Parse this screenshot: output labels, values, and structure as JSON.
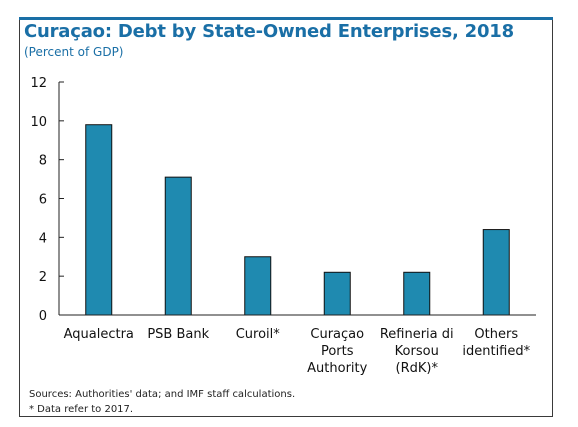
{
  "colors": {
    "accent": "#1a6fa6",
    "bar": "#1f8ab0",
    "bar_stroke": "#111111"
  },
  "chart_data": {
    "type": "bar",
    "title": "Curaçao: Debt by State-Owned Enterprises, 2018",
    "subtitle": "(Percent of GDP)",
    "categories": [
      [
        "Aqualectra"
      ],
      [
        "PSB Bank"
      ],
      [
        "Curoil*"
      ],
      [
        "Curaçao",
        "Ports",
        "Authority"
      ],
      [
        "Refineria di",
        "Korsou",
        "(RdK)*"
      ],
      [
        "Others",
        "identified*"
      ]
    ],
    "values": [
      9.8,
      7.1,
      3.0,
      2.2,
      2.2,
      4.4
    ],
    "ylim": [
      0,
      12
    ],
    "yticks": [
      0,
      2,
      4,
      6,
      8,
      10,
      12
    ],
    "xlabel": "",
    "ylabel": "",
    "grid": false,
    "legend": null
  },
  "notes": {
    "source": "Sources: Authorities' data; and IMF staff calculations.",
    "footnote": "* Data refer to 2017."
  }
}
